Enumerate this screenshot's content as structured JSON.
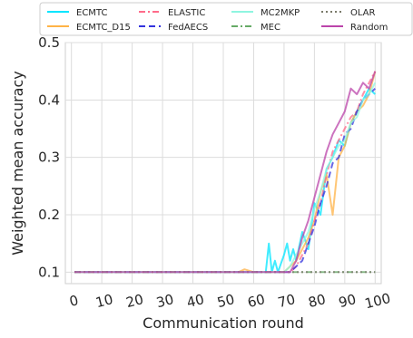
{
  "chart_data": {
    "type": "line",
    "title": "",
    "xlabel": "Communication round",
    "ylabel": "Weighted mean accuracy",
    "xlim": [
      -2,
      102
    ],
    "ylim": [
      0.08,
      0.5
    ],
    "xticks": [
      0,
      10,
      20,
      30,
      40,
      50,
      60,
      70,
      80,
      90,
      100
    ],
    "xtick_labels": [
      "0",
      "10",
      "20",
      "30",
      "40",
      "50",
      "60",
      "70",
      "80",
      "90",
      "100"
    ],
    "yticks": [
      0.1,
      0.2,
      0.3,
      0.4,
      0.5
    ],
    "ytick_labels": [
      "0.1",
      "0.2",
      "0.3",
      "0.4",
      "0.5"
    ],
    "grid": true,
    "legend_position": "top",
    "series": [
      {
        "name": "ECMTC",
        "color": "#00e5ff",
        "dash": "solid",
        "x": [
          1,
          60,
          62,
          64,
          65,
          66,
          67,
          68,
          70,
          71,
          72,
          73,
          74,
          76,
          78,
          80,
          82,
          84,
          86,
          88,
          90,
          92,
          94,
          96,
          98,
          100
        ],
        "y": [
          0.1,
          0.1,
          0.1,
          0.1,
          0.15,
          0.1,
          0.12,
          0.1,
          0.13,
          0.15,
          0.12,
          0.14,
          0.12,
          0.17,
          0.14,
          0.22,
          0.2,
          0.28,
          0.3,
          0.33,
          0.32,
          0.36,
          0.38,
          0.4,
          0.42,
          0.41
        ]
      },
      {
        "name": "ECMTC_D15",
        "color": "#ffb347",
        "dash": "solid",
        "x": [
          1,
          55,
          57,
          60,
          65,
          70,
          72,
          74,
          76,
          78,
          80,
          82,
          84,
          86,
          88,
          90,
          92,
          94,
          96,
          98,
          100
        ],
        "y": [
          0.1,
          0.1,
          0.105,
          0.1,
          0.1,
          0.1,
          0.11,
          0.12,
          0.14,
          0.16,
          0.19,
          0.24,
          0.27,
          0.2,
          0.3,
          0.32,
          0.36,
          0.38,
          0.39,
          0.41,
          0.45
        ]
      },
      {
        "name": "ELASTIC",
        "color": "#ff6b8a",
        "dash": "dashdot",
        "x": [
          1,
          60,
          65,
          70,
          72,
          74,
          76,
          78,
          80,
          82,
          84,
          86,
          88,
          90,
          92,
          94,
          96,
          98,
          100
        ],
        "y": [
          0.1,
          0.1,
          0.1,
          0.1,
          0.1,
          0.11,
          0.13,
          0.15,
          0.19,
          0.22,
          0.27,
          0.31,
          0.33,
          0.35,
          0.37,
          0.38,
          0.41,
          0.43,
          0.45
        ]
      },
      {
        "name": "FedAECS",
        "color": "#3333dd",
        "dash": "dashed",
        "x": [
          1,
          65,
          70,
          72,
          74,
          76,
          78,
          80,
          82,
          84,
          86,
          88,
          90,
          92,
          94,
          96,
          98,
          100
        ],
        "y": [
          0.1,
          0.1,
          0.1,
          0.1,
          0.11,
          0.12,
          0.15,
          0.18,
          0.22,
          0.25,
          0.29,
          0.3,
          0.34,
          0.35,
          0.38,
          0.4,
          0.41,
          0.42
        ]
      },
      {
        "name": "MC2MKP",
        "color": "#8ff5e0",
        "dash": "solid",
        "x": [
          1,
          65,
          70,
          72,
          74,
          76,
          78,
          80,
          82,
          84,
          86,
          88,
          90,
          92,
          94,
          96,
          98,
          100
        ],
        "y": [
          0.1,
          0.1,
          0.1,
          0.11,
          0.13,
          0.15,
          0.17,
          0.21,
          0.24,
          0.28,
          0.3,
          0.32,
          0.33,
          0.36,
          0.37,
          0.4,
          0.41,
          0.43
        ]
      },
      {
        "name": "MEC",
        "color": "#66aa66",
        "dash": "dashdot",
        "x": [
          1,
          25,
          50,
          75,
          90,
          100
        ],
        "y": [
          0.1,
          0.1,
          0.1,
          0.1,
          0.1,
          0.1
        ]
      },
      {
        "name": "OLAR",
        "color": "#7a7a6a",
        "dash": "dotted",
        "x": [
          1,
          25,
          50,
          75,
          90,
          100
        ],
        "y": [
          0.1,
          0.1,
          0.1,
          0.1,
          0.1,
          0.1
        ]
      },
      {
        "name": "Random",
        "color": "#bb44aa",
        "dash": "solid",
        "x": [
          1,
          60,
          65,
          68,
          70,
          72,
          74,
          76,
          78,
          80,
          82,
          84,
          86,
          88,
          90,
          92,
          94,
          96,
          98,
          100
        ],
        "y": [
          0.1,
          0.1,
          0.1,
          0.1,
          0.1,
          0.1,
          0.12,
          0.16,
          0.19,
          0.23,
          0.27,
          0.31,
          0.34,
          0.36,
          0.38,
          0.42,
          0.41,
          0.43,
          0.42,
          0.45
        ]
      }
    ]
  }
}
